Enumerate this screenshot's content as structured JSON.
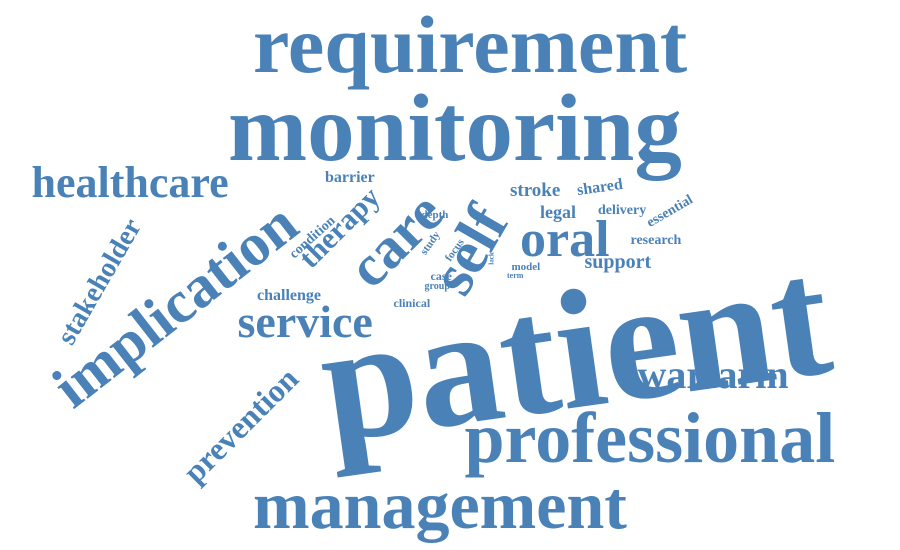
{
  "color": "#4a82b8",
  "words": [
    {
      "text": "patient",
      "weight": 100
    },
    {
      "text": "monitoring",
      "weight": 60
    },
    {
      "text": "requirement",
      "weight": 50
    },
    {
      "text": "professional",
      "weight": 45
    },
    {
      "text": "management",
      "weight": 42
    },
    {
      "text": "implication",
      "weight": 38
    },
    {
      "text": "self",
      "weight": 36
    },
    {
      "text": "care",
      "weight": 34
    },
    {
      "text": "oral",
      "weight": 30
    },
    {
      "text": "healthcare",
      "weight": 28
    },
    {
      "text": "service",
      "weight": 28
    },
    {
      "text": "warfarin",
      "weight": 25
    },
    {
      "text": "therapy",
      "weight": 20
    },
    {
      "text": "prevention",
      "weight": 20
    },
    {
      "text": "stakeholder",
      "weight": 18
    },
    {
      "text": "support",
      "weight": 12
    },
    {
      "text": "stroke",
      "weight": 12
    },
    {
      "text": "legal",
      "weight": 11
    },
    {
      "text": "challenge",
      "weight": 10
    },
    {
      "text": "barrier",
      "weight": 10
    },
    {
      "text": "shared",
      "weight": 9
    },
    {
      "text": "research",
      "weight": 9
    },
    {
      "text": "delivery",
      "weight": 8
    },
    {
      "text": "essential",
      "weight": 8
    },
    {
      "text": "condition",
      "weight": 8
    },
    {
      "text": "clinical",
      "weight": 7
    },
    {
      "text": "case",
      "weight": 7
    },
    {
      "text": "study",
      "weight": 7
    },
    {
      "text": "focus",
      "weight": 7
    },
    {
      "text": "model",
      "weight": 6
    },
    {
      "text": "depth",
      "weight": 6
    },
    {
      "text": "group",
      "weight": 5
    },
    {
      "text": "term",
      "weight": 4
    },
    {
      "text": "lack",
      "weight": 3
    }
  ]
}
